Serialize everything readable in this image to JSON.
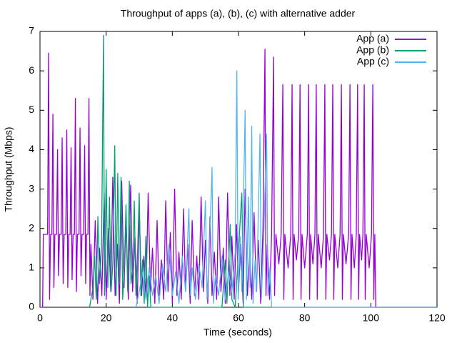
{
  "chart_data": {
    "type": "line",
    "title": "Throughput of apps (a), (b), (c) with alternative adder",
    "xlabel": "Time (seconds)",
    "ylabel": "Throughput (Mbps)",
    "xlim": [
      0,
      120
    ],
    "xticks": [
      0,
      20,
      40,
      60,
      80,
      100,
      120
    ],
    "ylim": [
      0,
      7
    ],
    "yticks": [
      0,
      1,
      2,
      3,
      4,
      5,
      6,
      7
    ],
    "legend": "top right",
    "series": [
      {
        "name": "App (a)",
        "color": "#9400d3",
        "x": [
          0,
          0.8,
          1,
          2.3,
          2.6,
          2.9,
          3.2,
          3.6,
          3.9,
          4.2,
          4.5,
          5.0,
          5.3,
          5.6,
          5.9,
          6.4,
          6.7,
          7.0,
          7.3,
          7.8,
          8.1,
          8.4,
          8.7,
          9.1,
          9.4,
          9.7,
          10.0,
          10.4,
          10.7,
          11.0,
          11.3,
          11.8,
          12.1,
          12.4,
          12.7,
          13.2,
          13.5,
          13.8,
          14.1,
          14.5,
          14.8,
          15.1,
          15.4,
          16,
          16.7,
          17.4,
          18,
          18.7,
          19.4,
          20,
          20.7,
          21.4,
          22,
          22.7,
          23.4,
          24,
          24.7,
          25.4,
          26,
          26.7,
          27.4,
          28,
          28.7,
          29.4,
          30,
          30.7,
          31.4,
          32,
          32.7,
          33.4,
          34,
          34.7,
          35.4,
          36,
          36.7,
          37.4,
          38,
          38.7,
          39.4,
          40,
          40.7,
          41.4,
          42,
          42.7,
          43.4,
          44,
          44.7,
          45.4,
          46,
          46.7,
          47.4,
          48,
          48.7,
          49.4,
          50,
          50.7,
          51.4,
          52,
          52.7,
          53.4,
          54,
          54.7,
          55.4,
          56,
          56.7,
          57.4,
          58,
          58.7,
          59.4,
          60,
          60.7,
          61.4,
          62,
          62.7,
          63.4,
          64,
          64.7,
          65.4,
          66,
          66.7,
          67.4,
          68,
          68.3,
          68.7,
          69.4,
          70,
          70.6,
          70.9,
          71.3,
          72.2,
          72.9,
          73.4,
          73.7,
          74.0,
          75.0,
          75.8,
          76.2,
          76.5,
          76.8,
          77.5,
          78.2,
          78.6,
          78.9,
          79.2,
          80,
          80.8,
          81.2,
          81.5,
          81.8,
          82.5,
          83.1,
          83.5,
          83.8,
          84.1,
          85,
          85.7,
          86.1,
          86.4,
          86.7,
          87.5,
          88.1,
          88.5,
          88.8,
          89.1,
          90,
          90.7,
          91.1,
          91.4,
          91.7,
          92.5,
          93.3,
          93.7,
          94,
          94.3,
          95,
          95.6,
          96,
          96.3,
          96.6,
          97.2,
          97.6,
          98,
          98.3,
          98.6,
          99.5,
          100.2,
          100.6,
          100.9,
          101.2,
          101.5,
          120
        ],
        "values": [
          0,
          0,
          1.85,
          1.85,
          6.45,
          0.2,
          1.85,
          1.85,
          4.9,
          0.5,
          1.85,
          1.85,
          4.0,
          0.8,
          1.85,
          1.85,
          4.3,
          0.6,
          1.85,
          1.85,
          4.5,
          0.5,
          1.85,
          1.85,
          4.05,
          0.7,
          1.85,
          1.85,
          5.3,
          0.4,
          1.85,
          1.85,
          4.55,
          0.8,
          1.85,
          1.85,
          4.1,
          0.6,
          1.85,
          1.85,
          5.3,
          0.3,
          1.6,
          0.2,
          2.2,
          0.1,
          1.5,
          0.3,
          2.9,
          0.2,
          2.0,
          0.4,
          3.3,
          0.3,
          1.6,
          0.1,
          3.2,
          0.5,
          2.2,
          0.2,
          3.1,
          0.4,
          1.8,
          0.1,
          2.5,
          0.3,
          1.3,
          0.2,
          2.9,
          0.4,
          1.5,
          0.1,
          2.2,
          0.3,
          1.2,
          0.2,
          2.7,
          0.4,
          1.9,
          0.1,
          3.0,
          0.3,
          1.4,
          0.2,
          2.5,
          0.4,
          1.6,
          0.1,
          2.2,
          0.3,
          1.3,
          0.2,
          2.8,
          0.4,
          1.7,
          0.1,
          2.3,
          0.3,
          1.4,
          0.2,
          2.8,
          0.4,
          1.5,
          0.1,
          2.9,
          0.3,
          1.8,
          0.2,
          2.1,
          0.4,
          1.6,
          0.1,
          3.0,
          0.3,
          1.4,
          0.2,
          2.4,
          0.4,
          1.7,
          0.1,
          2.0,
          6.55,
          0.3,
          1.6,
          0.2,
          1.85,
          6.35,
          0.3,
          1.85,
          1.1,
          1.85,
          5.65,
          0.2,
          1.85,
          1.0,
          1.85,
          5.65,
          0.2,
          1.85,
          1.2,
          1.85,
          5.65,
          0.2,
          1.85,
          1.0,
          1.85,
          5.65,
          0.2,
          1.85,
          1.1,
          1.85,
          5.65,
          0.2,
          1.85,
          1.0,
          1.85,
          5.65,
          0.2,
          1.85,
          1.2,
          1.85,
          5.65,
          0.2,
          1.85,
          1.0,
          1.85,
          5.65,
          0.2,
          1.85,
          1.1,
          1.85,
          5.65,
          0.2,
          1.85,
          1.0,
          1.85,
          5.65,
          0.2,
          1.85,
          1.2,
          1.85,
          5.65,
          0.2,
          1.85,
          1.0,
          1.85,
          5.65,
          0.2,
          1.85,
          0,
          0
        ]
      },
      {
        "name": "App (b)",
        "color": "#009e73",
        "x": [
          15,
          16,
          16.5,
          17,
          17.5,
          18,
          18.6,
          19.2,
          19.5,
          20,
          20.5,
          21,
          21.5,
          22,
          22.6,
          23,
          23.5,
          24,
          24.5,
          25,
          25.5,
          26,
          26.5,
          27,
          27.5,
          28,
          28.5,
          29,
          29.5,
          30,
          30.5,
          31,
          31.5,
          32,
          32.5,
          33,
          33.5,
          55,
          56,
          56.5,
          57.5,
          58,
          59,
          61,
          61.5,
          120
        ],
        "values": [
          0,
          0.5,
          1.3,
          0.2,
          2.3,
          0.6,
          1.5,
          6.9,
          0.3,
          3.5,
          0.5,
          2.8,
          0.4,
          1.1,
          4.1,
          0.3,
          3.4,
          0.6,
          3.3,
          0.2,
          1.0,
          2.6,
          0.4,
          3.2,
          0.6,
          1.0,
          2.7,
          0.3,
          1.4,
          2.9,
          0.3,
          1.2,
          0.1,
          1.8,
          0,
          0.8,
          0,
          0,
          1.2,
          0.1,
          2.1,
          0.2,
          0,
          2.9,
          0,
          0
        ]
      },
      {
        "name": "App (c)",
        "color": "#56b4e9",
        "x": [
          29,
          30,
          31,
          32,
          33,
          34,
          35,
          36,
          37,
          38,
          39,
          40,
          41,
          42,
          43,
          44,
          45,
          45.5,
          46,
          47,
          48,
          49,
          50,
          50.5,
          51,
          52,
          52.4,
          53,
          54,
          55,
          56,
          57,
          58,
          59,
          59.5,
          59.9,
          60.5,
          61,
          62,
          62.4,
          63,
          63.5,
          64,
          64.4,
          65,
          65.5,
          66.5,
          66.9,
          67.5,
          68.5,
          68.9,
          69.5,
          70,
          120
        ],
        "values": [
          0,
          0.4,
          0.9,
          0.2,
          1.0,
          0.3,
          0.8,
          0.1,
          1.1,
          0.4,
          1.6,
          0.3,
          0.9,
          0.1,
          1.3,
          0.4,
          2.5,
          0.3,
          1.0,
          0.2,
          1.1,
          0.5,
          2.7,
          0.2,
          0.9,
          3.55,
          0.1,
          0.8,
          0.3,
          1.3,
          0.2,
          0.9,
          0.4,
          1.4,
          6.0,
          0.2,
          1.8,
          0.4,
          5.0,
          0.2,
          2.8,
          0.5,
          4.6,
          0.1,
          1.2,
          0.4,
          4.4,
          0.2,
          1.4,
          4.4,
          0.3,
          1.0,
          0,
          0
        ]
      }
    ]
  }
}
